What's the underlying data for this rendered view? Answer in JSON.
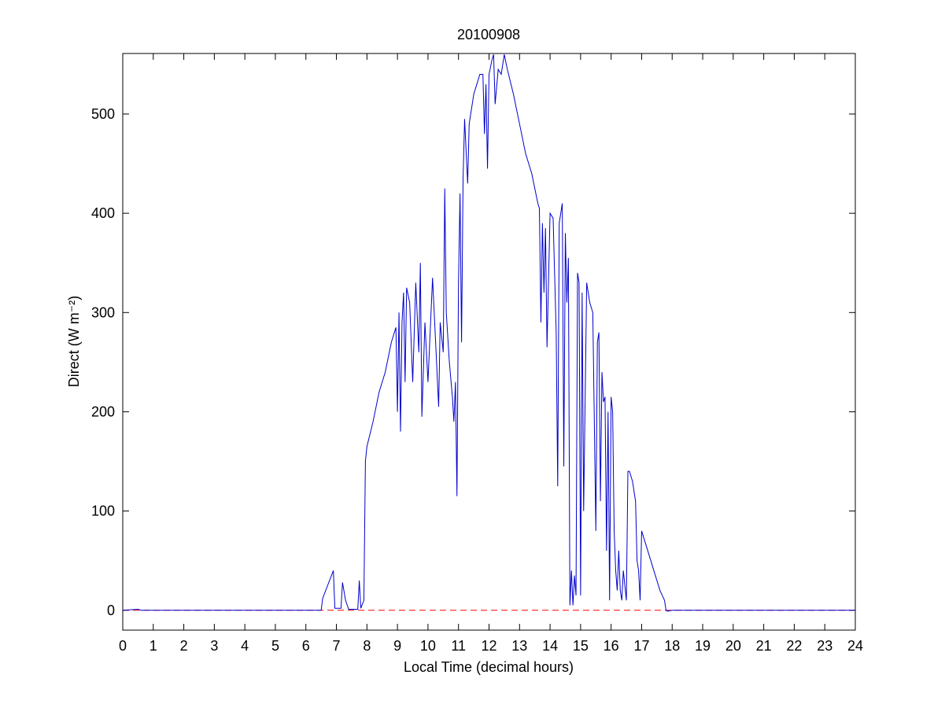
{
  "chart_data": {
    "type": "line",
    "title": "20100908",
    "xlabel": "Local Time (decimal hours)",
    "ylabel": "Direct (W m⁻²)",
    "xlim": [
      0,
      24
    ],
    "xticks": [
      0,
      1,
      2,
      3,
      4,
      5,
      6,
      7,
      8,
      9,
      10,
      11,
      12,
      13,
      14,
      15,
      16,
      17,
      18,
      19,
      20,
      21,
      22,
      23,
      24
    ],
    "ylim": [
      -20,
      561
    ],
    "yticks": [
      0,
      100,
      200,
      300,
      400,
      500
    ],
    "series": [
      {
        "color": "#0000cc",
        "dash": false,
        "x": [
          0,
          0.5,
          0.6,
          6.5,
          6.55,
          6.9,
          6.95,
          7.15,
          7.2,
          7.3,
          7.4,
          7.7,
          7.75,
          7.8,
          7.9,
          7.95,
          8.0,
          8.2,
          8.4,
          8.6,
          8.8,
          8.95,
          9.0,
          9.05,
          9.1,
          9.15,
          9.2,
          9.25,
          9.3,
          9.4,
          9.5,
          9.6,
          9.7,
          9.75,
          9.8,
          9.9,
          10.0,
          10.1,
          10.15,
          10.25,
          10.35,
          10.4,
          10.5,
          10.55,
          10.6,
          10.7,
          10.8,
          10.85,
          10.9,
          10.95,
          11.0,
          11.05,
          11.1,
          11.15,
          11.2,
          11.3,
          11.35,
          11.5,
          11.7,
          11.8,
          11.85,
          11.9,
          11.95,
          12.0,
          12.1,
          12.15,
          12.2,
          12.3,
          12.4,
          12.5,
          12.6,
          12.8,
          13.0,
          13.2,
          13.4,
          13.6,
          13.65,
          13.7,
          13.75,
          13.8,
          13.85,
          13.9,
          14.0,
          14.1,
          14.2,
          14.25,
          14.3,
          14.4,
          14.45,
          14.5,
          14.55,
          14.6,
          14.65,
          14.7,
          14.75,
          14.8,
          14.85,
          14.9,
          14.95,
          15.0,
          15.05,
          15.1,
          15.2,
          15.3,
          15.4,
          15.5,
          15.55,
          15.6,
          15.65,
          15.7,
          15.75,
          15.8,
          15.85,
          15.9,
          15.95,
          16.0,
          16.05,
          16.1,
          16.15,
          16.2,
          16.25,
          16.3,
          16.35,
          16.4,
          16.5,
          16.55,
          16.6,
          16.7,
          16.8,
          16.85,
          16.9,
          16.95,
          17.0,
          17.1,
          17.2,
          17.4,
          17.6,
          17.75,
          17.8,
          17.85,
          18.0,
          24
        ],
        "values": [
          0,
          1,
          0,
          0,
          12,
          40,
          2,
          2,
          28,
          10,
          1,
          1,
          30,
          2,
          10,
          150,
          165,
          190,
          220,
          240,
          270,
          285,
          200,
          300,
          180,
          290,
          320,
          230,
          325,
          310,
          230,
          330,
          260,
          350,
          195,
          290,
          230,
          300,
          335,
          270,
          205,
          290,
          260,
          425,
          300,
          250,
          215,
          190,
          230,
          115,
          330,
          420,
          270,
          435,
          495,
          430,
          490,
          520,
          540,
          540,
          480,
          530,
          445,
          540,
          555,
          560,
          510,
          545,
          540,
          560,
          545,
          520,
          490,
          460,
          440,
          410,
          405,
          290,
          390,
          320,
          385,
          265,
          400,
          395,
          280,
          125,
          390,
          410,
          145,
          380,
          310,
          355,
          5,
          40,
          5,
          35,
          15,
          340,
          330,
          15,
          320,
          100,
          330,
          310,
          300,
          80,
          270,
          280,
          110,
          240,
          210,
          215,
          60,
          200,
          10,
          215,
          200,
          80,
          40,
          20,
          60,
          20,
          10,
          40,
          10,
          140,
          140,
          130,
          110,
          50,
          40,
          10,
          80,
          70,
          60,
          40,
          20,
          10,
          0,
          -1,
          0,
          0
        ]
      },
      {
        "color": "#ff0000",
        "dash": true,
        "x": [
          0,
          24
        ],
        "values": [
          0,
          0
        ]
      }
    ]
  }
}
